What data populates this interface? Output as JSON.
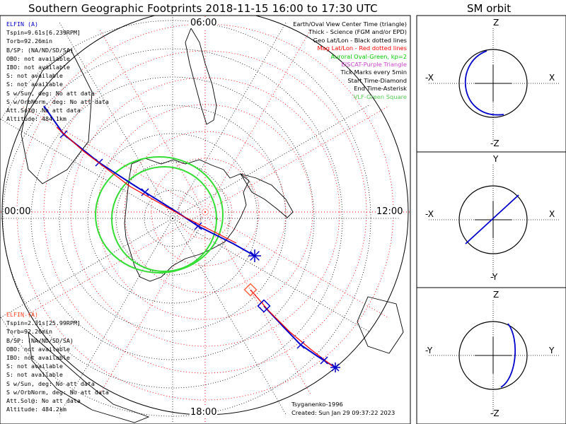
{
  "title": "Southern Geographic Footprints 2018-11-15 16:00 to 17:30 UTC",
  "sm_orbit_title": "SM orbit",
  "hour_labels": {
    "top": "06:00",
    "left": "00:00",
    "right": "12:00",
    "bottom": "18:00"
  },
  "info_top": {
    "header": "ELFIN (A)",
    "lines": [
      "Tspin=9.61s[6.239RPM]",
      "Torb=92.26min",
      "B/SP: (NA/ND/SD/SA)",
      "OBO: not available",
      "IBO: not available",
      "S: not available",
      "S: not available",
      "S w/Sun, deg: No att data",
      "S w/OrbNorm, deg: No att data",
      "Att.Sol@: No att data",
      "Altitude: 484.1km"
    ]
  },
  "info_bottom": {
    "header": "ELFIN (A)",
    "lines": [
      "Tspin=2.31s[25.99RPM]",
      "Torb=92.26min",
      "B/SP: (NA/ND/SD/SA)",
      "OBO: not available",
      "IBO: not available",
      "S: not available",
      "S: not available",
      "S w/Sun, deg: No att data",
      "S w/OrbNorm, deg: No att data",
      "Att.Sol@: No att data",
      "Altitude: 484.2km"
    ]
  },
  "legend": [
    {
      "text": "Earth/Oval View Center Time (triangle)",
      "color": "#000000"
    },
    {
      "text": "Thick - Science (FGM and/or EPD)",
      "color": "#000000"
    },
    {
      "text": "Geo Lat/Lon - Black dotted lines",
      "color": "#000000"
    },
    {
      "text": "Mag Lat/Lon - Red dotted lines",
      "color": "#ff0000"
    },
    {
      "text": "Auroral Oval-Green, kp=2",
      "color": "#00cc00"
    },
    {
      "text": "EISCAT-Purple Triangle",
      "color": "#cc44cc"
    },
    {
      "text": "Tick Marks every 5min",
      "color": "#000000"
    },
    {
      "text": "Start Time-Diamond",
      "color": "#000000"
    },
    {
      "text": "End Time-Asterisk",
      "color": "#000000"
    },
    {
      "text": "VLF-Green Square",
      "color": "#55cc55"
    }
  ],
  "credits": {
    "model": "Tsyganenko-1996",
    "created": "Created: Sun Jan 29 09:37:22 2023"
  },
  "sm_panels": [
    {
      "top": "Z",
      "bottom": "-Z",
      "left": "-X",
      "right": "X"
    },
    {
      "top": "Y",
      "bottom": "-Y",
      "left": "-X",
      "right": "X"
    },
    {
      "top": "Z",
      "bottom": "-Z",
      "left": "-Y",
      "right": "Y"
    }
  ],
  "colors": {
    "track": "#0000cc",
    "mag": "#ff0000",
    "oval": "#33dd33",
    "grid": "#000000",
    "track_alt": "#ff6644"
  },
  "chart_data": {
    "type": "polar-map",
    "title": "Southern Geographic Footprints 2018-11-15 16:00 to 17:30 UTC",
    "time_range_utc": [
      "16:00",
      "17:30"
    ],
    "hemisphere": "south",
    "clock_labels": [
      "06:00",
      "12:00",
      "18:00",
      "00:00"
    ],
    "auroral_oval_kp": 2,
    "tick_interval_min": 5,
    "series": [
      {
        "name": "ELFIN (A) footprint track",
        "color": "#0000cc"
      },
      {
        "name": "ELFIN (A) second pass",
        "color": "#0000cc"
      }
    ]
  }
}
